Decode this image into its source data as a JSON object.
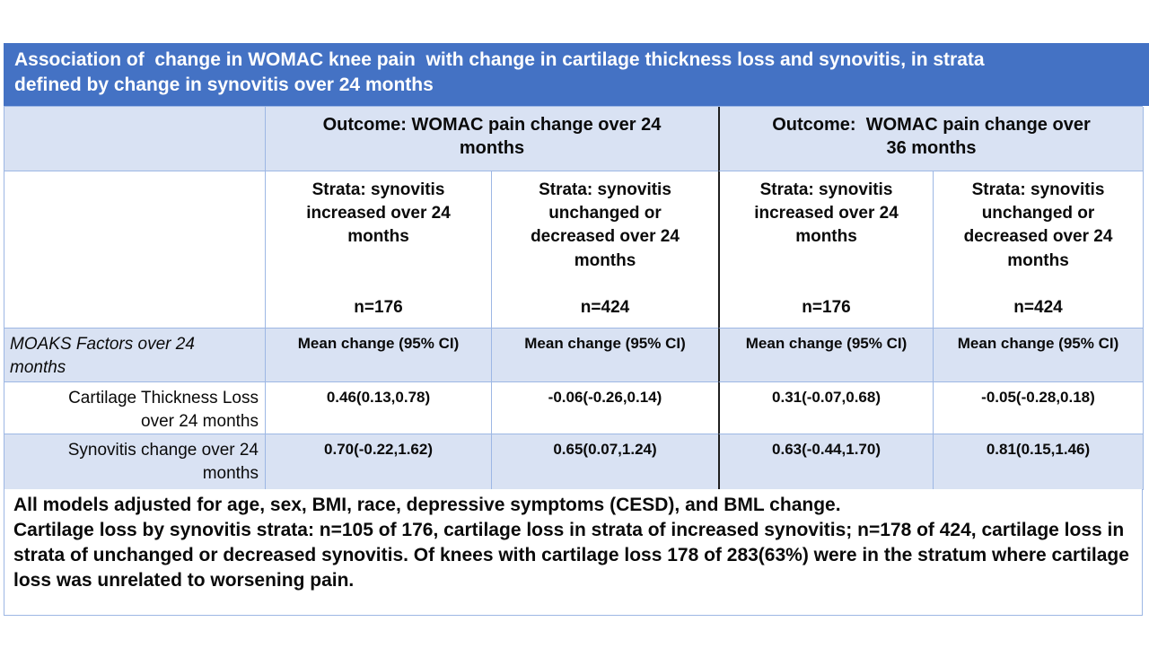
{
  "title": {
    "text": "Association of  change in WOMAC knee pain  with change in cartilage thickness loss and synovitis, in strata\ndefined by change in synovitis over 24 months"
  },
  "table": {
    "outcome_groups": [
      {
        "label": "Outcome: WOMAC pain change over 24\nmonths"
      },
      {
        "label": "Outcome:  WOMAC pain change over\n36 months"
      }
    ],
    "strata_columns": [
      {
        "label": "Strata: synovitis\nincreased over 24\nmonths",
        "n": "n=176"
      },
      {
        "label": "Strata: synovitis\nunchanged or\ndecreased over 24\nmonths",
        "n": "n=424"
      },
      {
        "label": "Strata: synovitis\nincreased over 24\nmonths",
        "n": "n=176"
      },
      {
        "label": "Strata: synovitis\nunchanged or\ndecreased over 24\nmonths",
        "n": "n=424"
      }
    ],
    "measure_row": {
      "label": "MOAKS Factors over 24\nmonths",
      "cells": [
        "Mean change (95% CI)",
        "Mean change (95% CI)",
        "Mean change (95% CI)",
        "Mean change (95% CI)"
      ]
    },
    "data_rows": [
      {
        "label": "Cartilage Thickness Loss\nover 24 months",
        "values": [
          "0.46(0.13,0.78)",
          "-0.06(-0.26,0.14)",
          "0.31(-0.07,0.68)",
          "-0.05(-0.28,0.18)"
        ]
      },
      {
        "label": "Synovitis change over 24\nmonths",
        "values": [
          "0.70(-0.22,1.62)",
          "0.65(0.07,1.24)",
          "0.63(-0.44,1.70)",
          "0.81(0.15,1.46)"
        ]
      }
    ]
  },
  "footnotes": {
    "line1": "All models adjusted for age, sex, BMI, race, depressive symptoms (CESD), and BML change.",
    "line2": "Cartilage loss by synovitis strata: n=105 of 176, cartilage loss in strata of increased synovitis; n=178 of 424, cartilage loss in strata of unchanged or decreased synovitis. Of knees with cartilage loss 178 of 283(63%) were in the stratum where cartilage loss was unrelated to worsening pain."
  },
  "colors": {
    "title_bar": "#4472C4",
    "row_shade": "#D9E2F3",
    "border_light": "#9DB7E4",
    "group_divider": "#1f1f1f",
    "title_text": "#ffffff",
    "body_text": "#0a0a0a"
  }
}
